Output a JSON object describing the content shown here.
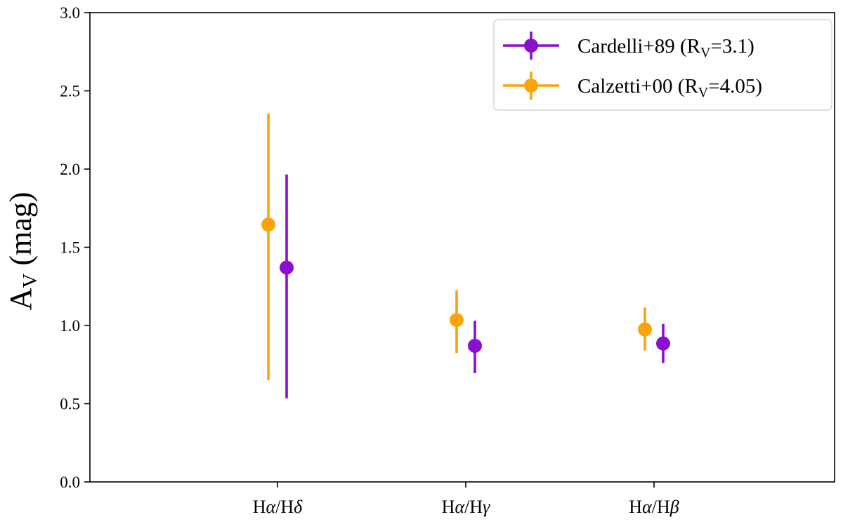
{
  "chart_data": {
    "type": "scatter",
    "title": "",
    "xlabel": "",
    "ylabel": {
      "main": "A",
      "sub": "V",
      "unit": " (mag)"
    },
    "categories": [
      {
        "prefix": "H",
        "g1": "α",
        "mid": "/H",
        "g2": "δ"
      },
      {
        "prefix": "H",
        "g1": "α",
        "mid": "/H",
        "g2": "γ"
      },
      {
        "prefix": "H",
        "g1": "α",
        "mid": "/H",
        "g2": "β"
      }
    ],
    "ylim": [
      0.0,
      3.0
    ],
    "yticks": [
      "0.0",
      "0.5",
      "1.0",
      "1.5",
      "2.0",
      "2.5",
      "3.0"
    ],
    "legend_position": "upper right",
    "series": [
      {
        "name": "Cardelli+89 (R_V=3.1)",
        "legend": {
          "main": "Cardelli+89 (R",
          "sub": "V",
          "tail": "=3.1)"
        },
        "color": "#8a0fd1",
        "values": [
          1.37,
          0.87,
          0.885
        ],
        "yerr_low": [
          0.535,
          0.695,
          0.76
        ],
        "yerr_high": [
          1.965,
          1.03,
          1.01
        ]
      },
      {
        "name": "Calzetti+00 (R_V=4.05)",
        "legend": {
          "main": "Calzetti+00 (R",
          "sub": "V",
          "tail": "=4.05)"
        },
        "color": "#f9a40b",
        "values": [
          1.645,
          1.035,
          0.975
        ],
        "yerr_low": [
          0.65,
          0.825,
          0.84
        ],
        "yerr_high": [
          2.355,
          1.225,
          1.115
        ]
      }
    ]
  }
}
